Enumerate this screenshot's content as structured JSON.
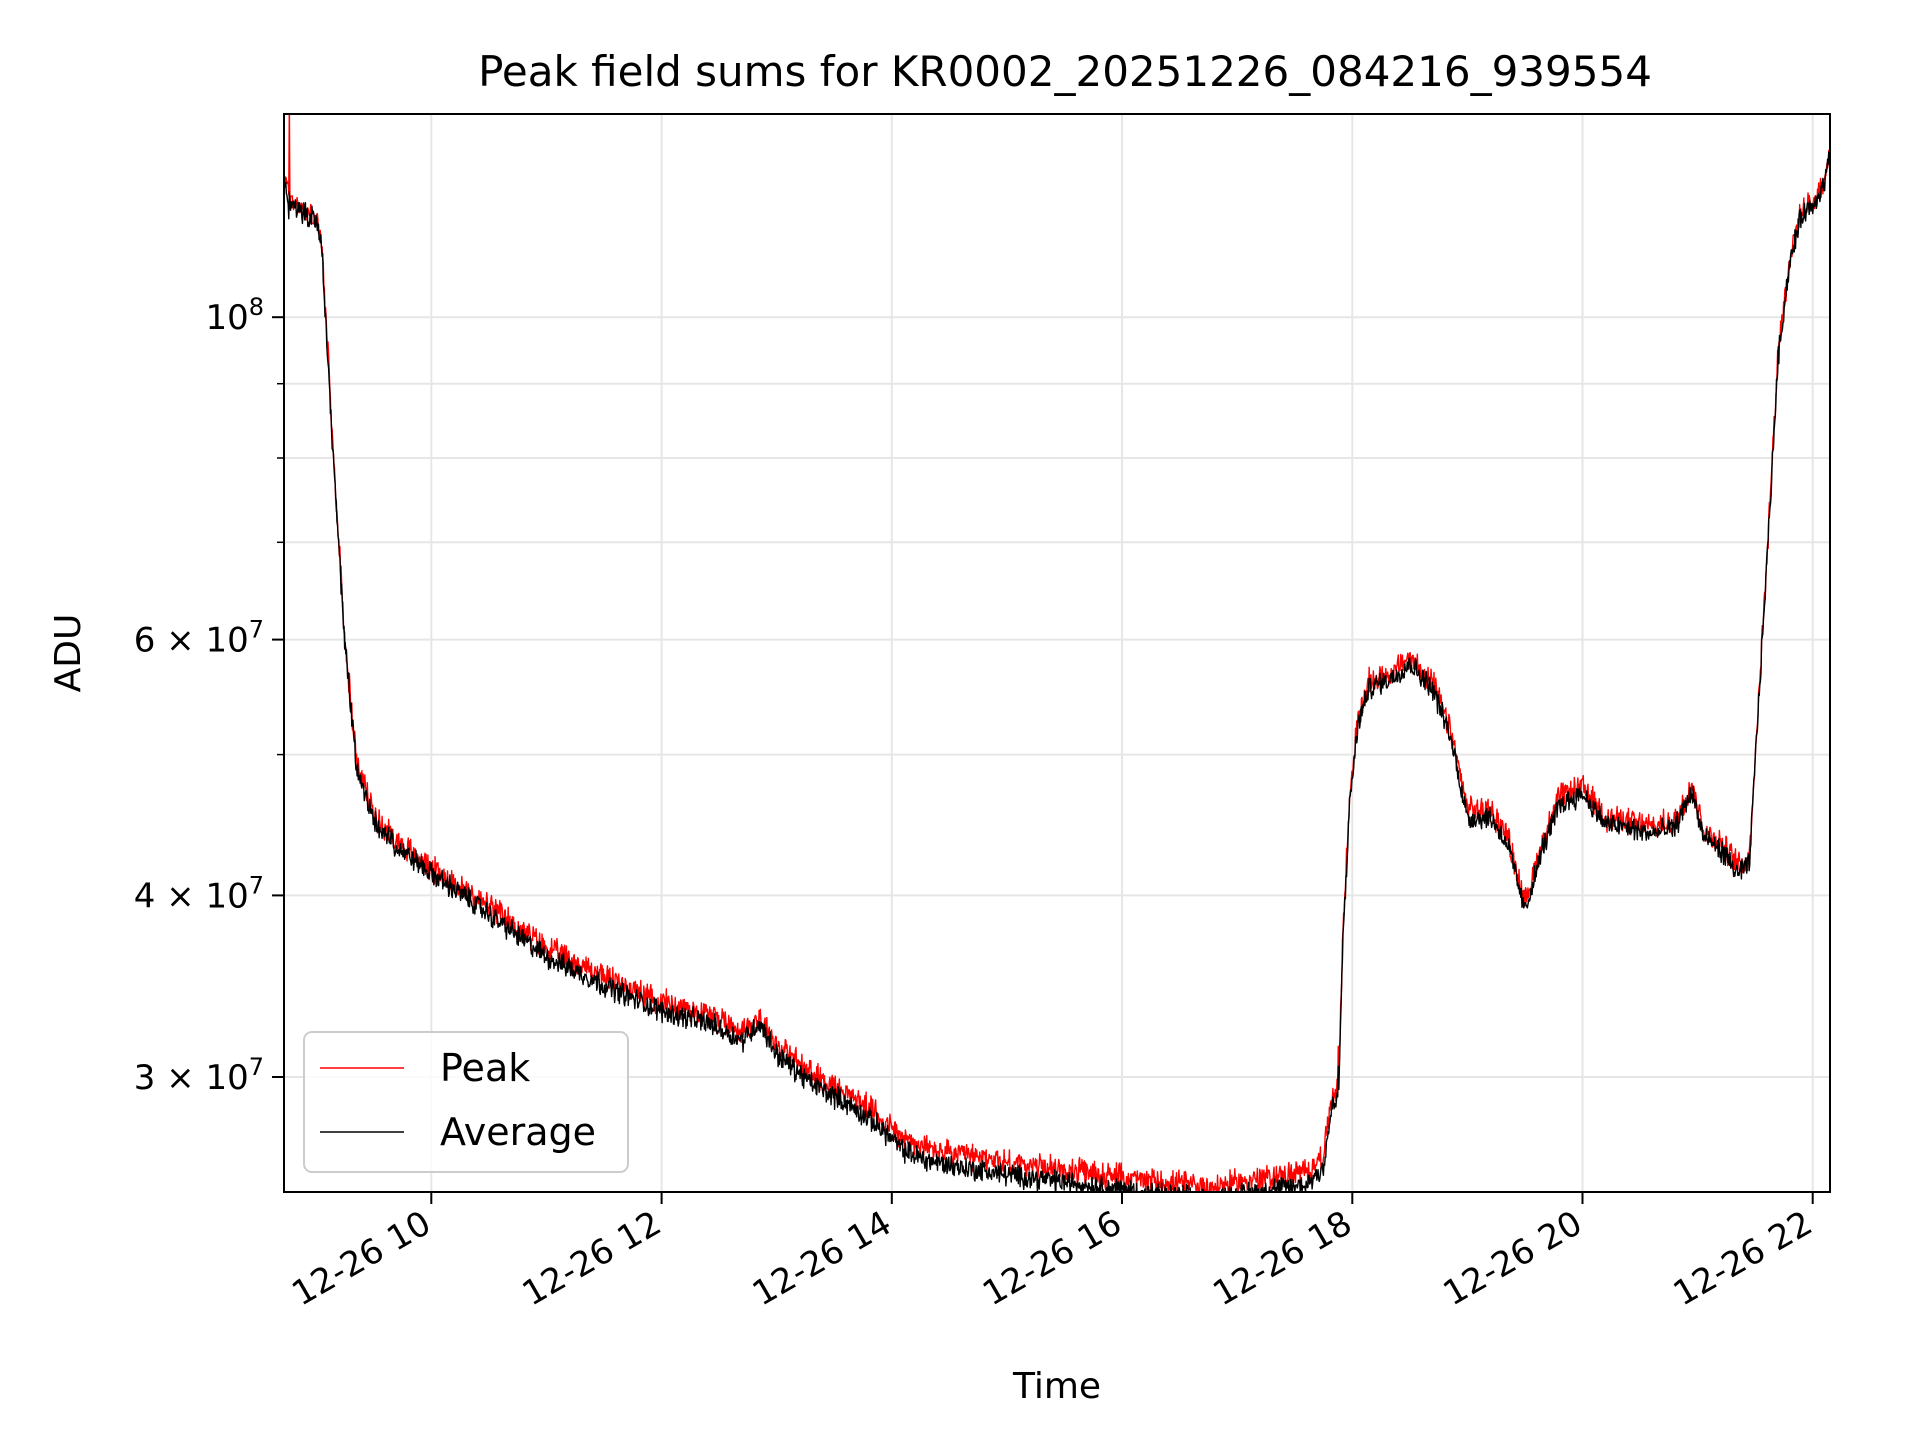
{
  "chart_data": {
    "type": "line",
    "title": "Peak field sums for KR0002_20251226_084216_939554",
    "xlabel": "Time",
    "ylabel": "ADU",
    "yscale": "log",
    "xlim_hours": [
      8.72,
      22.15
    ],
    "ylim": [
      25000000,
      138000000
    ],
    "grid": true,
    "legend_position": "lower-left",
    "x_ticks": [
      {
        "hour": 10,
        "label": "12-26 10"
      },
      {
        "hour": 12,
        "label": "12-26 12"
      },
      {
        "hour": 14,
        "label": "12-26 14"
      },
      {
        "hour": 16,
        "label": "12-26 16"
      },
      {
        "hour": 18,
        "label": "12-26 18"
      },
      {
        "hour": 20,
        "label": "12-26 20"
      },
      {
        "hour": 22,
        "label": "12-26 22"
      }
    ],
    "y_ticks": [
      {
        "value": 100000000,
        "mant": "",
        "exp": "8"
      },
      {
        "value": 60000000,
        "mant": "6 × ",
        "exp": "7"
      },
      {
        "value": 40000000,
        "mant": "4 × ",
        "exp": "7"
      },
      {
        "value": 30000000,
        "mant": "3 × ",
        "exp": "7"
      }
    ],
    "y_minor": [
      50000000,
      70000000,
      80000000,
      90000000
    ],
    "series": [
      {
        "name": "Peak",
        "color": "#ff0000",
        "noise": 0.016,
        "spikes": [
          [
            8.765,
            140000000
          ],
          [
            17.88,
            31500000
          ]
        ],
        "x": [
          8.72,
          8.76,
          8.8,
          8.9,
          9.0,
          9.05,
          9.15,
          9.25,
          9.35,
          9.5,
          9.6,
          9.8,
          10.0,
          10.3,
          10.6,
          11.0,
          11.5,
          12.0,
          12.4,
          12.7,
          12.85,
          13.0,
          13.3,
          13.6,
          13.9,
          14.1,
          14.3,
          14.6,
          15.0,
          15.5,
          16.0,
          16.3,
          16.6,
          16.8,
          17.0,
          17.3,
          17.6,
          17.75,
          17.82,
          17.88,
          17.92,
          17.98,
          18.05,
          18.15,
          18.35,
          18.5,
          18.7,
          18.85,
          18.9,
          19.0,
          19.2,
          19.35,
          19.5,
          19.65,
          19.8,
          20.0,
          20.2,
          20.4,
          20.6,
          20.8,
          20.95,
          21.05,
          21.2,
          21.35,
          21.45,
          21.5,
          21.6,
          21.7,
          21.8,
          21.9,
          22.0,
          22.1,
          22.15
        ],
        "y": [
          125000000,
          122000000,
          120000000,
          118500000,
          117000000,
          112000000,
          80000000,
          60000000,
          49500000,
          45500000,
          44500000,
          43000000,
          41800000,
          40300000,
          38800000,
          36800000,
          35200000,
          33800000,
          33200000,
          32300000,
          33000000,
          31600000,
          30200000,
          29300000,
          28200000,
          27200000,
          26800000,
          26500000,
          26200000,
          25900000,
          25600000,
          25400000,
          25300000,
          25200000,
          25400000,
          25600000,
          25800000,
          26500000,
          29000000,
          29500000,
          38000000,
          47000000,
          53000000,
          56200000,
          57000000,
          58300000,
          56000000,
          52000000,
          50000000,
          45800000,
          45800000,
          44000000,
          39500000,
          43500000,
          46800000,
          47500000,
          45300000,
          45000000,
          44600000,
          45000000,
          47800000,
          44400000,
          43500000,
          42000000,
          42500000,
          50000000,
          68000000,
          95000000,
          110000000,
          118000000,
          120000000,
          124000000,
          130000000
        ]
      },
      {
        "name": "Average",
        "color": "#000000",
        "noise": 0.014,
        "spikes": [
          [
            8.765,
            122000000
          ],
          [
            17.88,
            30500000
          ]
        ],
        "x": [
          8.72,
          8.76,
          8.8,
          8.9,
          9.0,
          9.05,
          9.15,
          9.25,
          9.35,
          9.5,
          9.6,
          9.8,
          10.0,
          10.3,
          10.6,
          11.0,
          11.5,
          12.0,
          12.4,
          12.7,
          12.85,
          13.0,
          13.3,
          13.6,
          13.9,
          14.1,
          14.3,
          14.6,
          15.0,
          15.5,
          16.0,
          16.3,
          16.6,
          16.8,
          17.0,
          17.3,
          17.6,
          17.75,
          17.82,
          17.88,
          17.92,
          17.98,
          18.05,
          18.15,
          18.35,
          18.5,
          18.7,
          18.85,
          18.9,
          19.0,
          19.2,
          19.35,
          19.5,
          19.65,
          19.8,
          20.0,
          20.2,
          20.4,
          20.6,
          20.8,
          20.95,
          21.05,
          21.2,
          21.35,
          21.45,
          21.5,
          21.6,
          21.7,
          21.8,
          21.9,
          22.0,
          22.1,
          22.15
        ],
        "y": [
          125000000,
          118000000,
          119000000,
          118000000,
          116500000,
          111000000,
          79000000,
          59500000,
          49000000,
          45000000,
          44000000,
          42600000,
          41400000,
          39900000,
          38300000,
          36300000,
          34700000,
          33300000,
          32700000,
          31800000,
          32700000,
          31100000,
          29700000,
          28800000,
          27700000,
          26700000,
          26300000,
          26000000,
          25700000,
          25400000,
          25100000,
          24900000,
          24800000,
          24700000,
          24900000,
          25100000,
          25300000,
          26000000,
          28500000,
          29000000,
          37500000,
          46500000,
          52500000,
          55600000,
          56500000,
          57800000,
          55500000,
          51500000,
          49500000,
          45200000,
          45300000,
          43400000,
          39000000,
          43000000,
          46200000,
          47000000,
          44800000,
          44500000,
          44100000,
          44500000,
          47200000,
          43900000,
          43000000,
          41400000,
          42000000,
          49500000,
          67500000,
          94000000,
          109000000,
          117500000,
          119500000,
          123500000,
          129500000
        ]
      }
    ]
  }
}
